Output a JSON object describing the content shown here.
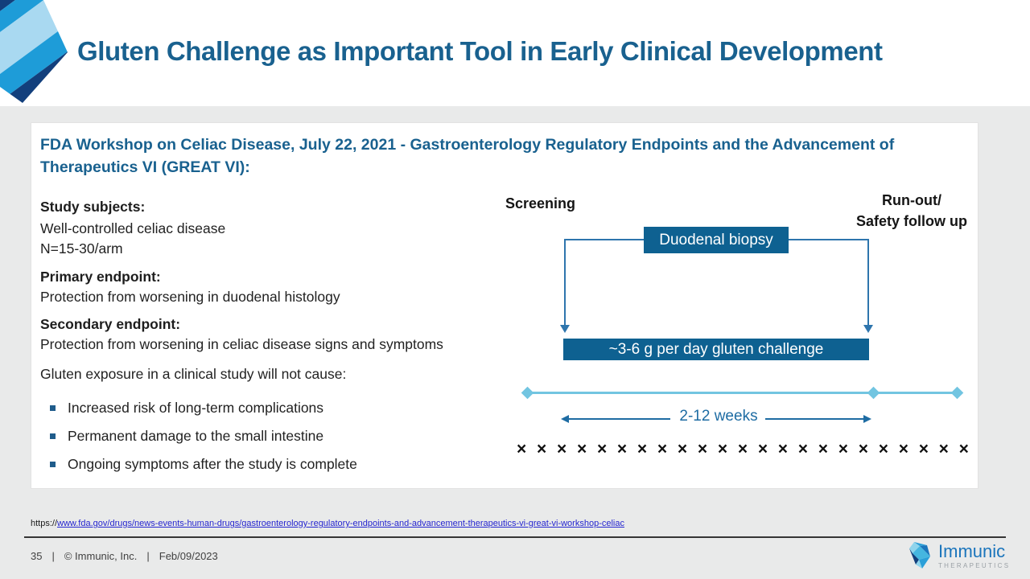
{
  "title": "Gluten Challenge as Important Tool in Early Clinical Development",
  "panel": {
    "heading": "FDA Workshop on Celiac Disease, July 22, 2021 - Gastroenterology Regulatory Endpoints and the Advancement of Therapeutics VI (GREAT VI):",
    "study": {
      "label": "Study subjects:",
      "line1": "Well-controlled celiac disease",
      "line2": "N=15-30/arm"
    },
    "primary": {
      "label": "Primary endpoint:",
      "text": "Protection from worsening in duodenal histology"
    },
    "secondary": {
      "label": "Secondary endpoint:",
      "text": "Protection from worsening in celiac disease signs and symptoms"
    },
    "exposure_intro": "Gluten exposure in a clinical study will not cause:",
    "bullets": [
      "Increased risk of long-term complications",
      "Permanent damage to the small intestine",
      "Ongoing symptoms after the study is complete"
    ]
  },
  "diagram": {
    "screening_label": "Screening",
    "runout_line1": "Run-out/",
    "runout_line2": "Safety follow up",
    "biopsy_box_label": "Duodenal biopsy",
    "challenge_bar_label": "~3-6 g per day gluten challenge",
    "duration_label": "2-12 weeks",
    "x_marks": "× × × × × × × × × × × × × × × × × × × × × × ×"
  },
  "source": {
    "prefix": "https://",
    "link": "www.fda.gov/drugs/news-events-human-drugs/gastroenterology-regulatory-endpoints-and-advancement-therapeutics-vi-great-vi-workshop-celiac"
  },
  "footer": {
    "page_number": "35",
    "separator": "|",
    "copyright": "© Immunic, Inc.",
    "date": "Feb/09/2023",
    "brand_name": "Immunic",
    "brand_sub": "THERAPEUTICS"
  },
  "colors": {
    "heading_blue": "#19618f",
    "box_fill": "#0e6191",
    "connector_blue": "#2e75ad",
    "timeline_light_blue": "#72c5e1",
    "duration_blue": "#1e6ca3",
    "link_blue": "#2525d0",
    "brand_blue": "#1b75bc",
    "background_gray": "#e9eaea"
  }
}
